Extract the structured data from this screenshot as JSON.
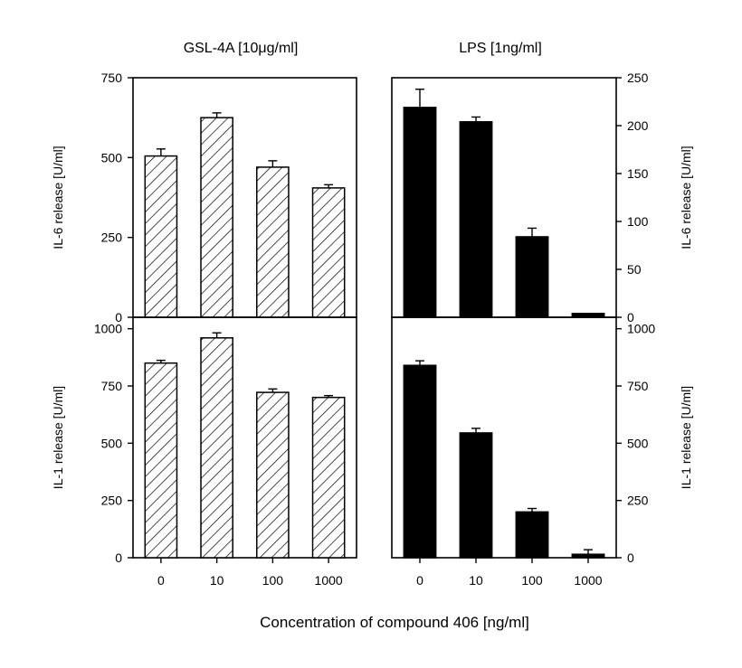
{
  "chart_data": {
    "type": "bar",
    "column_titles": [
      "GSL-4A [10μg/ml]",
      "LPS [1ng/ml]"
    ],
    "xlabel": "Concentration of compound 406 [ng/ml]",
    "categories": [
      "0",
      "10",
      "100",
      "1000"
    ],
    "panels": [
      {
        "row": "top",
        "column": "left",
        "ylabel": "IL-6 release [U/ml]",
        "ylim": [
          0,
          750
        ],
        "yticks": [
          "0",
          "250",
          "500",
          "750"
        ],
        "bar_style": "hatched",
        "values": [
          505,
          625,
          470,
          405
        ],
        "errors": [
          22,
          15,
          20,
          10
        ]
      },
      {
        "row": "top",
        "column": "right",
        "ylabel": "IL-6 release [U/ml]",
        "ylim": [
          0,
          250
        ],
        "yticks": [
          "0",
          "50",
          "100",
          "150",
          "200",
          "250"
        ],
        "bar_style": "solid",
        "values": [
          219,
          204,
          84,
          4
        ],
        "errors": [
          19,
          5,
          9,
          0
        ]
      },
      {
        "row": "bottom",
        "column": "left",
        "ylabel": "IL-1 release [U/ml]",
        "ylim": [
          0,
          1050
        ],
        "yticks": [
          "0",
          "250",
          "500",
          "750",
          "1000"
        ],
        "bar_style": "hatched",
        "values": [
          850,
          960,
          722,
          700
        ],
        "errors": [
          12,
          22,
          15,
          8
        ]
      },
      {
        "row": "bottom",
        "column": "right",
        "ylabel": "IL-1 release [U/ml]",
        "ylim": [
          0,
          1050
        ],
        "yticks": [
          "0",
          "250",
          "500",
          "750",
          "1000"
        ],
        "bar_style": "solid",
        "values": [
          840,
          545,
          200,
          15
        ],
        "errors": [
          20,
          20,
          15,
          20
        ]
      }
    ],
    "legend": "none",
    "grid": false,
    "colors": {
      "bar_fill_solid": "#000000",
      "bar_fill_hatched": "#ffffff",
      "axes": "#000000",
      "background": "#ffffff"
    }
  }
}
